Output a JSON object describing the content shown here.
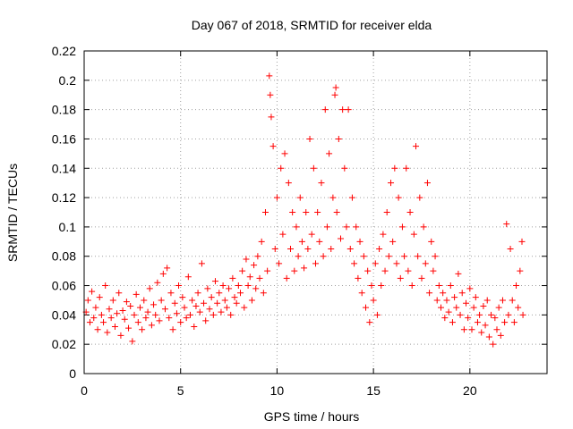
{
  "chart_data": {
    "type": "scatter",
    "title": "Day 067 of 2018, SRMTID for receiver elda",
    "xlabel": "GPS time / hours",
    "ylabel": "SRMTID / TECUs",
    "xlim": [
      0,
      24
    ],
    "ylim": [
      0,
      0.22
    ],
    "x_ticks": [
      0,
      5,
      10,
      15,
      20
    ],
    "x_tick_labels": [
      "0",
      "5",
      "10",
      "15",
      "20"
    ],
    "y_ticks": [
      0,
      0.02,
      0.04,
      0.06,
      0.08,
      0.1,
      0.12,
      0.14,
      0.16,
      0.18,
      0.2,
      0.22
    ],
    "y_tick_labels": [
      "0",
      "0.02",
      "0.04",
      "0.06",
      "0.08",
      "0.1",
      "0.12",
      "0.14",
      "0.16",
      "0.18",
      "0.2",
      "0.22"
    ],
    "grid": true,
    "marker": "+",
    "color": "#ff0000",
    "series": [
      {
        "name": "SRMTID",
        "points": [
          [
            0.1,
            0.042
          ],
          [
            0.2,
            0.05
          ],
          [
            0.3,
            0.035
          ],
          [
            0.4,
            0.056
          ],
          [
            0.5,
            0.038
          ],
          [
            0.6,
            0.045
          ],
          [
            0.7,
            0.03
          ],
          [
            0.8,
            0.052
          ],
          [
            0.9,
            0.04
          ],
          [
            1.0,
            0.035
          ],
          [
            1.1,
            0.06
          ],
          [
            1.2,
            0.028
          ],
          [
            1.3,
            0.044
          ],
          [
            1.4,
            0.038
          ],
          [
            1.5,
            0.05
          ],
          [
            1.6,
            0.032
          ],
          [
            1.7,
            0.041
          ],
          [
            1.8,
            0.055
          ],
          [
            1.9,
            0.026
          ],
          [
            2.0,
            0.043
          ],
          [
            2.1,
            0.037
          ],
          [
            2.2,
            0.049
          ],
          [
            2.3,
            0.031
          ],
          [
            2.4,
            0.046
          ],
          [
            2.5,
            0.022
          ],
          [
            2.6,
            0.04
          ],
          [
            2.7,
            0.054
          ],
          [
            2.8,
            0.035
          ],
          [
            2.9,
            0.045
          ],
          [
            3.0,
            0.03
          ],
          [
            3.1,
            0.05
          ],
          [
            3.2,
            0.038
          ],
          [
            3.3,
            0.042
          ],
          [
            3.4,
            0.058
          ],
          [
            3.5,
            0.033
          ],
          [
            3.6,
            0.047
          ],
          [
            3.7,
            0.04
          ],
          [
            3.8,
            0.062
          ],
          [
            3.9,
            0.036
          ],
          [
            4.0,
            0.05
          ],
          [
            4.1,
            0.068
          ],
          [
            4.2,
            0.044
          ],
          [
            4.3,
            0.072
          ],
          [
            4.4,
            0.038
          ],
          [
            4.5,
            0.055
          ],
          [
            4.6,
            0.03
          ],
          [
            4.7,
            0.048
          ],
          [
            4.8,
            0.041
          ],
          [
            4.9,
            0.06
          ],
          [
            5.0,
            0.035
          ],
          [
            5.1,
            0.052
          ],
          [
            5.2,
            0.045
          ],
          [
            5.3,
            0.038
          ],
          [
            5.4,
            0.066
          ],
          [
            5.5,
            0.04
          ],
          [
            5.6,
            0.05
          ],
          [
            5.7,
            0.032
          ],
          [
            5.8,
            0.046
          ],
          [
            5.9,
            0.055
          ],
          [
            6.0,
            0.042
          ],
          [
            6.1,
            0.075
          ],
          [
            6.2,
            0.048
          ],
          [
            6.3,
            0.036
          ],
          [
            6.4,
            0.058
          ],
          [
            6.5,
            0.044
          ],
          [
            6.6,
            0.052
          ],
          [
            6.7,
            0.04
          ],
          [
            6.8,
            0.063
          ],
          [
            6.9,
            0.048
          ],
          [
            7.0,
            0.055
          ],
          [
            7.1,
            0.042
          ],
          [
            7.2,
            0.06
          ],
          [
            7.3,
            0.05
          ],
          [
            7.4,
            0.045
          ],
          [
            7.5,
            0.058
          ],
          [
            7.6,
            0.04
          ],
          [
            7.7,
            0.065
          ],
          [
            7.8,
            0.052
          ],
          [
            7.9,
            0.048
          ],
          [
            8.0,
            0.06
          ],
          [
            8.1,
            0.055
          ],
          [
            8.2,
            0.07
          ],
          [
            8.3,
            0.045
          ],
          [
            8.4,
            0.078
          ],
          [
            8.5,
            0.06
          ],
          [
            8.6,
            0.066
          ],
          [
            8.7,
            0.05
          ],
          [
            8.8,
            0.074
          ],
          [
            8.9,
            0.058
          ],
          [
            9.0,
            0.08
          ],
          [
            9.1,
            0.065
          ],
          [
            9.2,
            0.09
          ],
          [
            9.3,
            0.055
          ],
          [
            9.4,
            0.11
          ],
          [
            9.5,
            0.07
          ],
          [
            9.6,
            0.203
          ],
          [
            9.65,
            0.19
          ],
          [
            9.7,
            0.175
          ],
          [
            9.8,
            0.155
          ],
          [
            9.9,
            0.085
          ],
          [
            10.0,
            0.12
          ],
          [
            10.1,
            0.075
          ],
          [
            10.2,
            0.14
          ],
          [
            10.3,
            0.095
          ],
          [
            10.4,
            0.15
          ],
          [
            10.5,
            0.065
          ],
          [
            10.6,
            0.13
          ],
          [
            10.7,
            0.085
          ],
          [
            10.8,
            0.11
          ],
          [
            10.9,
            0.07
          ],
          [
            11.0,
            0.1
          ],
          [
            11.1,
            0.08
          ],
          [
            11.2,
            0.12
          ],
          [
            11.3,
            0.09
          ],
          [
            11.4,
            0.072
          ],
          [
            11.5,
            0.11
          ],
          [
            11.6,
            0.085
          ],
          [
            11.7,
            0.16
          ],
          [
            11.8,
            0.095
          ],
          [
            11.9,
            0.14
          ],
          [
            12.0,
            0.075
          ],
          [
            12.1,
            0.11
          ],
          [
            12.2,
            0.09
          ],
          [
            12.3,
            0.13
          ],
          [
            12.4,
            0.08
          ],
          [
            12.5,
            0.18
          ],
          [
            12.6,
            0.1
          ],
          [
            12.7,
            0.15
          ],
          [
            12.8,
            0.085
          ],
          [
            12.9,
            0.12
          ],
          [
            13.0,
            0.19
          ],
          [
            13.05,
            0.195
          ],
          [
            13.1,
            0.11
          ],
          [
            13.2,
            0.16
          ],
          [
            13.3,
            0.092
          ],
          [
            13.4,
            0.18
          ],
          [
            13.5,
            0.14
          ],
          [
            13.6,
            0.1
          ],
          [
            13.7,
            0.18
          ],
          [
            13.8,
            0.085
          ],
          [
            13.9,
            0.12
          ],
          [
            14.0,
            0.075
          ],
          [
            14.1,
            0.1
          ],
          [
            14.2,
            0.065
          ],
          [
            14.3,
            0.09
          ],
          [
            14.4,
            0.055
          ],
          [
            14.5,
            0.08
          ],
          [
            14.6,
            0.045
          ],
          [
            14.7,
            0.07
          ],
          [
            14.8,
            0.035
          ],
          [
            14.9,
            0.06
          ],
          [
            15.0,
            0.05
          ],
          [
            15.1,
            0.075
          ],
          [
            15.2,
            0.04
          ],
          [
            15.3,
            0.085
          ],
          [
            15.4,
            0.06
          ],
          [
            15.5,
            0.095
          ],
          [
            15.6,
            0.07
          ],
          [
            15.7,
            0.11
          ],
          [
            15.8,
            0.08
          ],
          [
            15.9,
            0.13
          ],
          [
            16.0,
            0.09
          ],
          [
            16.1,
            0.14
          ],
          [
            16.2,
            0.075
          ],
          [
            16.3,
            0.12
          ],
          [
            16.4,
            0.065
          ],
          [
            16.5,
            0.1
          ],
          [
            16.6,
            0.08
          ],
          [
            16.7,
            0.14
          ],
          [
            16.8,
            0.07
          ],
          [
            16.9,
            0.11
          ],
          [
            17.0,
            0.06
          ],
          [
            17.1,
            0.095
          ],
          [
            17.2,
            0.155
          ],
          [
            17.3,
            0.08
          ],
          [
            17.4,
            0.12
          ],
          [
            17.5,
            0.065
          ],
          [
            17.6,
            0.1
          ],
          [
            17.7,
            0.075
          ],
          [
            17.8,
            0.13
          ],
          [
            17.9,
            0.055
          ],
          [
            18.0,
            0.09
          ],
          [
            18.1,
            0.07
          ],
          [
            18.2,
            0.08
          ],
          [
            18.3,
            0.05
          ],
          [
            18.4,
            0.06
          ],
          [
            18.5,
            0.045
          ],
          [
            18.6,
            0.055
          ],
          [
            18.7,
            0.038
          ],
          [
            18.8,
            0.05
          ],
          [
            18.9,
            0.042
          ],
          [
            19.0,
            0.06
          ],
          [
            19.1,
            0.035
          ],
          [
            19.2,
            0.052
          ],
          [
            19.3,
            0.045
          ],
          [
            19.4,
            0.068
          ],
          [
            19.5,
            0.04
          ],
          [
            19.6,
            0.055
          ],
          [
            19.7,
            0.03
          ],
          [
            19.8,
            0.048
          ],
          [
            19.9,
            0.038
          ],
          [
            20.0,
            0.058
          ],
          [
            20.1,
            0.03
          ],
          [
            20.2,
            0.045
          ],
          [
            20.3,
            0.052
          ],
          [
            20.4,
            0.035
          ],
          [
            20.5,
            0.04
          ],
          [
            20.6,
            0.028
          ],
          [
            20.7,
            0.046
          ],
          [
            20.8,
            0.033
          ],
          [
            20.9,
            0.05
          ],
          [
            21.0,
            0.025
          ],
          [
            21.1,
            0.04
          ],
          [
            21.2,
            0.02
          ],
          [
            21.3,
            0.038
          ],
          [
            21.4,
            0.03
          ],
          [
            21.5,
            0.045
          ],
          [
            21.6,
            0.026
          ],
          [
            21.7,
            0.05
          ],
          [
            21.8,
            0.035
          ],
          [
            21.9,
            0.102
          ],
          [
            22.0,
            0.04
          ],
          [
            22.1,
            0.085
          ],
          [
            22.2,
            0.05
          ],
          [
            22.3,
            0.035
          ],
          [
            22.4,
            0.06
          ],
          [
            22.5,
            0.045
          ],
          [
            22.6,
            0.07
          ],
          [
            22.7,
            0.09
          ],
          [
            22.75,
            0.04
          ]
        ]
      }
    ]
  }
}
